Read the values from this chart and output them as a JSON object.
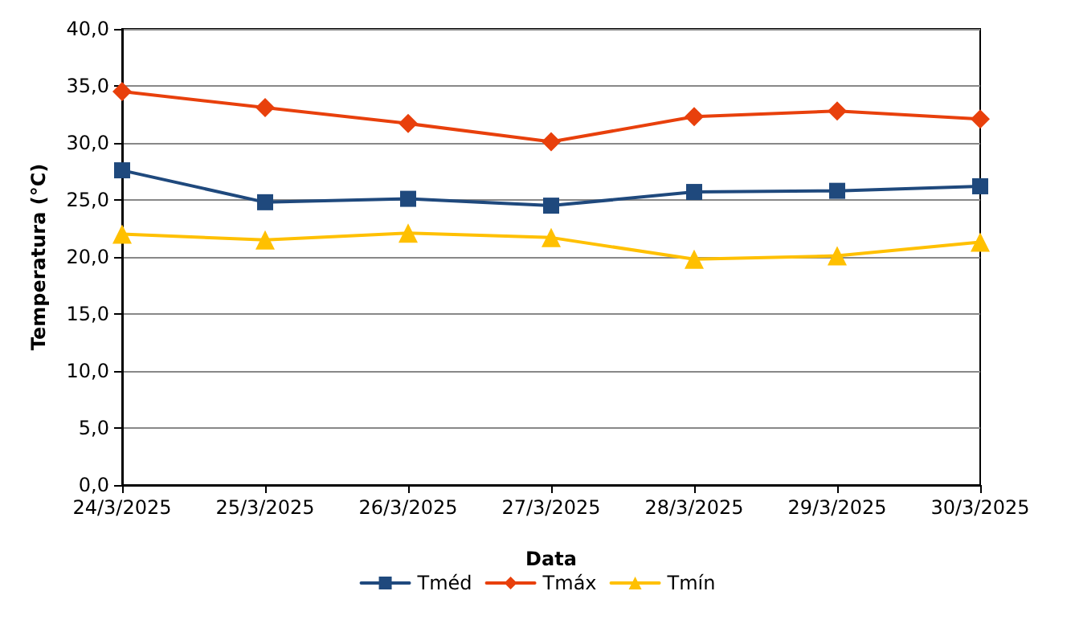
{
  "chart_data": {
    "type": "line",
    "xlabel": "Data",
    "ylabel": "Temperatura (°C)",
    "categories": [
      "24/3/2025",
      "25/3/2025",
      "26/3/2025",
      "27/3/2025",
      "28/3/2025",
      "29/3/2025",
      "30/3/2025"
    ],
    "series": [
      {
        "name": "Tméd",
        "color": "#1f497d",
        "marker": "square",
        "values": [
          27.6,
          24.8,
          25.1,
          24.5,
          25.7,
          25.8,
          26.2
        ]
      },
      {
        "name": "Tmáx",
        "color": "#e8400c",
        "marker": "diamond",
        "values": [
          34.5,
          33.1,
          31.7,
          30.1,
          32.3,
          32.8,
          32.1
        ]
      },
      {
        "name": "Tmín",
        "color": "#ffc000",
        "marker": "triangle",
        "values": [
          22.0,
          21.5,
          22.1,
          21.7,
          19.8,
          20.1,
          21.3
        ]
      }
    ],
    "ylim": [
      0,
      40
    ],
    "yticks": [
      {
        "value": 0,
        "label": "0,0"
      },
      {
        "value": 5,
        "label": "5,0"
      },
      {
        "value": 10,
        "label": "10,0"
      },
      {
        "value": 15,
        "label": "15,0"
      },
      {
        "value": 20,
        "label": "20,0"
      },
      {
        "value": 25,
        "label": "25,0"
      },
      {
        "value": 30,
        "label": "30,0"
      },
      {
        "value": 35,
        "label": "35,0"
      },
      {
        "value": 40,
        "label": "40,0"
      }
    ],
    "grid": "y",
    "legend": "bottom",
    "line_style": "solid"
  }
}
